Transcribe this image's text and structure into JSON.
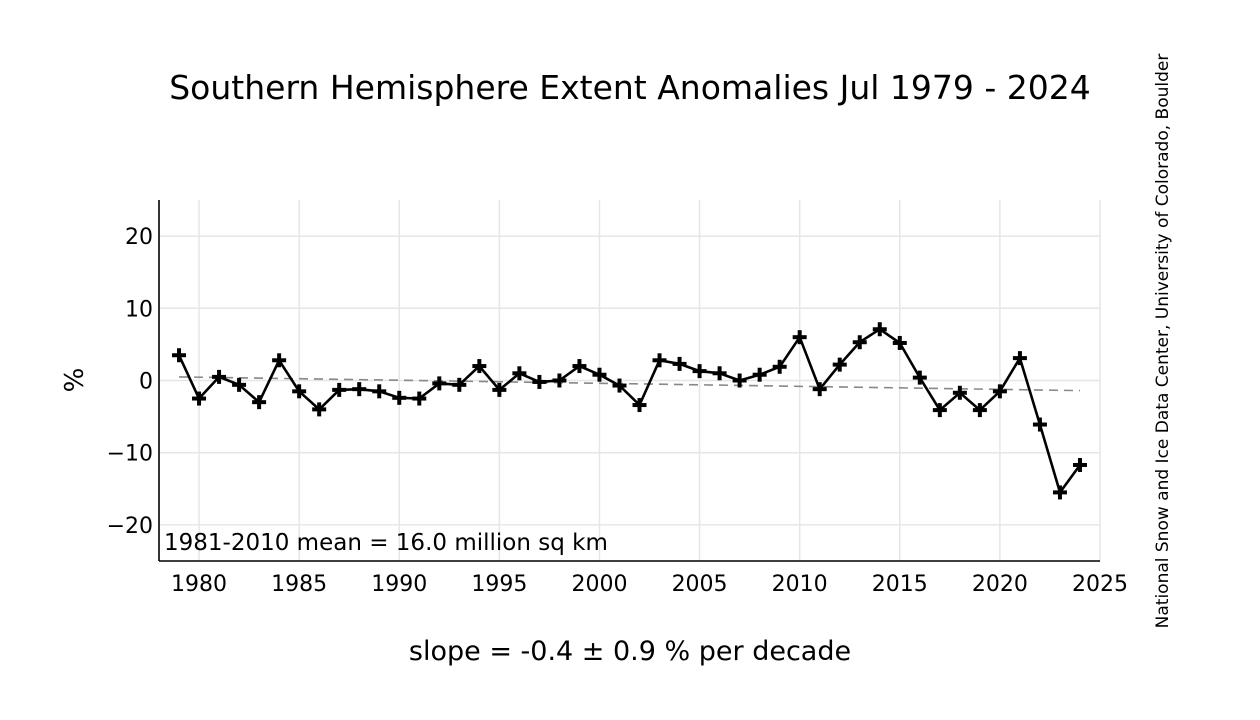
{
  "chart_data": {
    "type": "line",
    "title": "Southern Hemisphere Extent Anomalies Jul 1979 - 2024",
    "xlabel": "slope = -0.4 ± 0.9 % per decade",
    "ylabel": "%",
    "annotation": "1981-2010 mean = 16.0 million sq km",
    "credit": "National Snow and Ice Data Center, University of Colorado, Boulder",
    "xlim": [
      1978,
      2025
    ],
    "ylim": [
      -25,
      25
    ],
    "x_ticks": [
      1980,
      1985,
      1990,
      1995,
      2000,
      2005,
      2010,
      2015,
      2020,
      2025
    ],
    "x_tick_labels": [
      "1980",
      "1985",
      "1990",
      "1995",
      "2000",
      "2005",
      "2010",
      "2015",
      "2020",
      "2025"
    ],
    "y_ticks": [
      20,
      10,
      0,
      -10,
      -20
    ],
    "y_tick_labels": [
      "20",
      "10",
      "0",
      "−10",
      "−20"
    ],
    "grid": true,
    "x": [
      1979,
      1980,
      1981,
      1982,
      1983,
      1984,
      1985,
      1986,
      1987,
      1988,
      1989,
      1990,
      1991,
      1992,
      1993,
      1994,
      1995,
      1996,
      1997,
      1998,
      1999,
      2000,
      2001,
      2002,
      2003,
      2004,
      2005,
      2006,
      2007,
      2008,
      2009,
      2010,
      2011,
      2012,
      2013,
      2014,
      2015,
      2016,
      2017,
      2018,
      2019,
      2020,
      2021,
      2022,
      2023,
      2024
    ],
    "series": [
      {
        "values": [
          3.5,
          -2.5,
          0.5,
          -0.6,
          -3.0,
          2.8,
          -1.5,
          -4.0,
          -1.3,
          -1.2,
          -1.5,
          -2.4,
          -2.5,
          -0.4,
          -0.6,
          2.0,
          -1.3,
          1.0,
          -0.2,
          0.0,
          2.0,
          0.8,
          -0.7,
          -3.4,
          2.8,
          2.3,
          1.3,
          1.0,
          0.0,
          0.8,
          1.9,
          6.0,
          -1.2,
          2.2,
          5.3,
          7.1,
          5.2,
          0.4,
          -4.1,
          -1.7,
          -4.1,
          -1.5,
          3.1,
          -6.1,
          -15.5,
          -11.7
        ],
        "color": "#000000",
        "marker": "plus"
      },
      {
        "values": [
          0.5,
          -1.4
        ],
        "x": [
          1979,
          2024
        ],
        "color": "#888888",
        "style": "dashed",
        "kind": "trend"
      }
    ]
  }
}
